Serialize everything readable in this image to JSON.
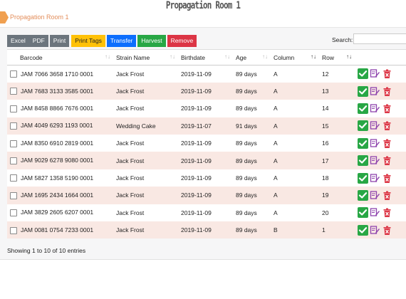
{
  "page": {
    "title": "Propagation Room 1",
    "breadcrumb": "Propagation Room 1"
  },
  "toolbar": {
    "buttons": [
      {
        "label": "Excel"
      },
      {
        "label": "PDF"
      },
      {
        "label": "Print"
      },
      {
        "label": "Print Tags"
      },
      {
        "label": "Transfer"
      },
      {
        "label": "Harvest"
      },
      {
        "label": "Remove"
      }
    ],
    "search_label": "Search:",
    "search_value": ""
  },
  "table": {
    "columns": [
      "Barcode",
      "Strain Name",
      "Birthdate",
      "Age",
      "Column",
      "Row"
    ],
    "rows": [
      {
        "barcode": "JAM 7066 3658 1710 0001",
        "strain": "Jack Frost",
        "birthdate": "2019-11-09",
        "age": "89 days",
        "column": "A",
        "row": "12"
      },
      {
        "barcode": "JAM 7683 3133 3585 0001",
        "strain": "Jack Frost",
        "birthdate": "2019-11-09",
        "age": "89 days",
        "column": "A",
        "row": "13"
      },
      {
        "barcode": "JAM 8458 8866 7676 0001",
        "strain": "Jack Frost",
        "birthdate": "2019-11-09",
        "age": "89 days",
        "column": "A",
        "row": "14"
      },
      {
        "barcode": "JAM 4049 6293 1193 0001",
        "strain": "Wedding Cake",
        "birthdate": "2019-11-07",
        "age": "91 days",
        "column": "A",
        "row": "15"
      },
      {
        "barcode": "JAM 8350 6910 2819 0001",
        "strain": "Jack Frost",
        "birthdate": "2019-11-09",
        "age": "89 days",
        "column": "A",
        "row": "16"
      },
      {
        "barcode": "JAM 9029 6278 9080 0001",
        "strain": "Jack Frost",
        "birthdate": "2019-11-09",
        "age": "89 days",
        "column": "A",
        "row": "17"
      },
      {
        "barcode": "JAM 5827 1358 5190 0001",
        "strain": "Jack Frost",
        "birthdate": "2019-11-09",
        "age": "89 days",
        "column": "A",
        "row": "18"
      },
      {
        "barcode": "JAM 1695 2434 1664 0001",
        "strain": "Jack Frost",
        "birthdate": "2019-11-09",
        "age": "89 days",
        "column": "A",
        "row": "19"
      },
      {
        "barcode": "JAM 3829 2605 6207 0001",
        "strain": "Jack Frost",
        "birthdate": "2019-11-09",
        "age": "89 days",
        "column": "A",
        "row": "20"
      },
      {
        "barcode": "JAM 0081 0754 7233 0001",
        "strain": "Jack Frost",
        "birthdate": "2019-11-09",
        "age": "89 days",
        "column": "B",
        "row": "1"
      }
    ]
  },
  "footer": {
    "info": "Showing 1 to 10 of 10 entries"
  },
  "colors": {
    "accent_orange": "#e38d5a",
    "row_alt": "#f9e8e3",
    "btn_grey": "#6c757d",
    "btn_yellow": "#ffc107",
    "btn_blue": "#0d6efd",
    "btn_green": "#28a745",
    "btn_red": "#dc3545"
  },
  "icons": {
    "row_actions": [
      "check-icon",
      "edit-icon",
      "trash-icon"
    ],
    "sort": "sort-arrows-icon"
  }
}
